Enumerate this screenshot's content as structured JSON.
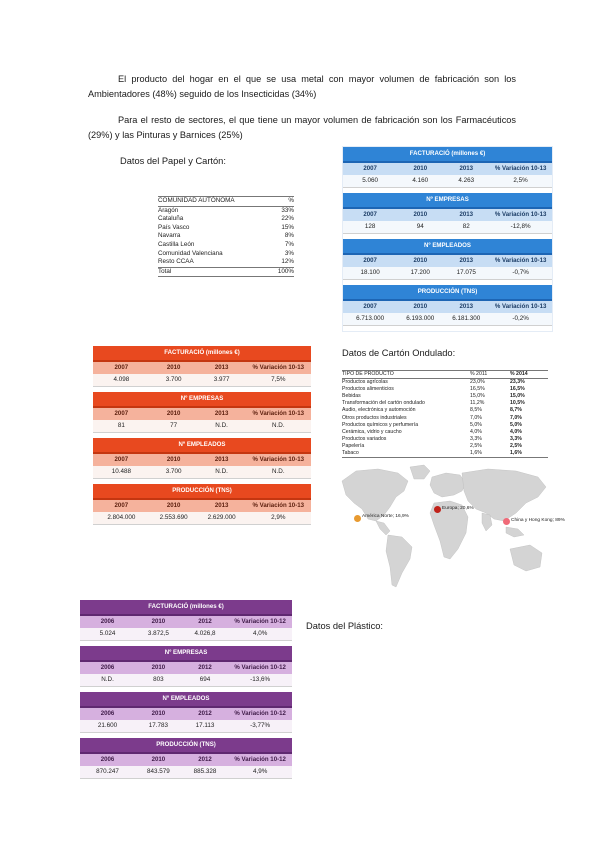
{
  "paragraphs": {
    "p1": "El producto del hogar en el que se usa metal con mayor volumen de fabricación son los Ambientadores (48%) seguido de los Insecticidas (34%)",
    "p2": "Para el resto de sectores, el que tiene un mayor volumen de fabricación son los Farmacéuticos (29%) y las Pinturas y Barnices (25%)"
  },
  "headings": {
    "papel": "Datos del Papel y Cartón:",
    "carton": "Datos de Cartón Ondulado:",
    "plastico": "Datos del Plástico:"
  },
  "ccaa_table": {
    "header": [
      "COMUNIDAD AUTÓNOMA",
      "%"
    ],
    "rows": [
      [
        "Aragón",
        "33%"
      ],
      [
        "Cataluña",
        "22%"
      ],
      [
        "País Vasco",
        "15%"
      ],
      [
        "Navarra",
        "8%"
      ],
      [
        "Castilla León",
        "7%"
      ],
      [
        "Comunidad Valenciana",
        "3%"
      ],
      [
        "Resto CCAA",
        "12%"
      ]
    ],
    "total": [
      "Total",
      "100%"
    ]
  },
  "stats_blue": {
    "header": [
      "2007",
      "2010",
      "2013",
      "% Variación 10-13"
    ],
    "sections": [
      {
        "title": "FACTURACIÓ (millones €)",
        "values": [
          "5.060",
          "4.160",
          "4.263",
          "2,5%"
        ]
      },
      {
        "title": "Nº EMPRESAS",
        "values": [
          "128",
          "94",
          "82",
          "-12,8%"
        ]
      },
      {
        "title": "Nº EMPLEADOS",
        "values": [
          "18.100",
          "17.200",
          "17.075",
          "-0,7%"
        ]
      },
      {
        "title": "PRODUCCIÓN (TNS)",
        "values": [
          "6.713.000",
          "6.193.000",
          "6.181.300",
          "-0,2%"
        ]
      }
    ]
  },
  "stats_red": {
    "header": [
      "2007",
      "2010",
      "2013",
      "% Variación 10-13"
    ],
    "sections": [
      {
        "title": "FACTURACIÓ (millones €)",
        "values": [
          "4.098",
          "3.700",
          "3.977",
          "7,5%"
        ]
      },
      {
        "title": "Nº EMPRESAS",
        "values": [
          "81",
          "77",
          "N.D.",
          "N.D."
        ]
      },
      {
        "title": "Nº EMPLEADOS",
        "values": [
          "10.488",
          "3.700",
          "N.D.",
          "N.D."
        ]
      },
      {
        "title": "PRODUCCIÓN (TNS)",
        "values": [
          "2.804.000",
          "2.553.690",
          "2.629.000",
          "2,9%"
        ]
      }
    ]
  },
  "stats_purple": {
    "header": [
      "2006",
      "2010",
      "2012",
      "% Variación 10-12"
    ],
    "sections": [
      {
        "title": "FACTURACIÓ (millones €)",
        "values": [
          "5.024",
          "3.872,5",
          "4.026,8",
          "4,0%"
        ]
      },
      {
        "title": "Nº EMPRESAS",
        "values": [
          "N.D.",
          "803",
          "694",
          "-13,6%"
        ]
      },
      {
        "title": "Nº EMPLEADOS",
        "values": [
          "21.600",
          "17.783",
          "17.113",
          "-3,77%"
        ]
      },
      {
        "title": "PRODUCCIÓN (TNS)",
        "values": [
          "870.247",
          "843.579",
          "885.328",
          "4,9%"
        ]
      }
    ]
  },
  "carton_table": {
    "header": [
      "TIPO DE PRODUCTO",
      "% 2011",
      "% 2014"
    ],
    "rows": [
      [
        "Productos agrícolas",
        "23,0%",
        "23,3%"
      ],
      [
        "Productos alimenticios",
        "16,5%",
        "16,5%"
      ],
      [
        "Bebidas",
        "15,0%",
        "15,0%"
      ],
      [
        "Transformación del cartón ondulado",
        "11,2%",
        "10,5%"
      ],
      [
        "Audio, electrónica y automoción",
        "8,5%",
        "8,7%"
      ],
      [
        "Otros productos industriales",
        "7,0%",
        "7,0%"
      ],
      [
        "Productos químicos y perfumería",
        "5,0%",
        "5,0%"
      ],
      [
        "Cerámica, vidrio y caucho",
        "4,0%",
        "4,0%"
      ],
      [
        "Productos variados",
        "3,3%",
        "3,3%"
      ],
      [
        "Papelería",
        "2,5%",
        "2,5%"
      ],
      [
        "Tabaco",
        "1,6%",
        "1,6%"
      ]
    ]
  },
  "map": {
    "labels": [
      {
        "text": "América Norte; 16,9%",
        "color": "#e89a30"
      },
      {
        "text": "Europa; 20,6%",
        "color": "#c0221a"
      },
      {
        "text": "China y Hong Kong; 89%",
        "color": "#f06a78"
      }
    ]
  }
}
